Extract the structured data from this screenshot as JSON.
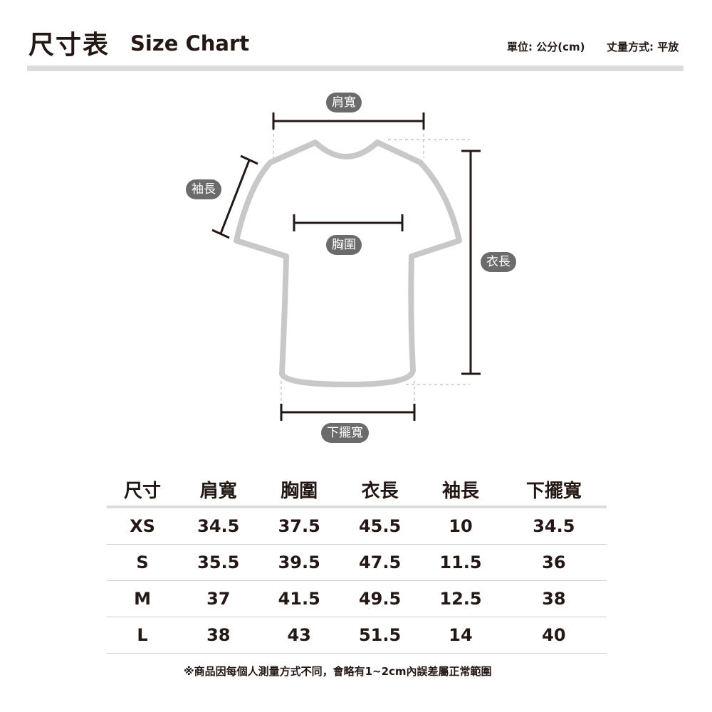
{
  "header": {
    "title": "尺寸表",
    "title_en": "Size Chart",
    "unit": "單位: 公分(cm)",
    "method": "丈量方式: 平放"
  },
  "diagram": {
    "shoulder": "肩寬",
    "sleeve": "袖長",
    "chest": "胸圍",
    "length": "衣長",
    "hem": "下擺寬",
    "outline_color": "#c8c8c8",
    "label_bg": "#6b6b6b"
  },
  "table": {
    "headers": [
      "尺寸",
      "肩寬",
      "胸圍",
      "衣長",
      "袖長",
      "下擺寬"
    ],
    "rows": [
      [
        "XS",
        "34.5",
        "37.5",
        "45.5",
        "10",
        "34.5"
      ],
      [
        "S",
        "35.5",
        "39.5",
        "47.5",
        "11.5",
        "36"
      ],
      [
        "M",
        "37",
        "41.5",
        "49.5",
        "12.5",
        "38"
      ],
      [
        "L",
        "38",
        "43",
        "51.5",
        "14",
        "40"
      ]
    ]
  },
  "note": "※商品因每個人測量方式不同，會略有1~2cm內誤差屬正常範圍"
}
